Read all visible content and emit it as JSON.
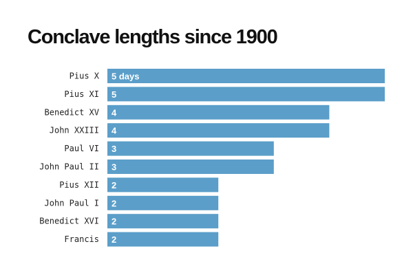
{
  "chart_data": {
    "type": "bar",
    "orientation": "horizontal",
    "title": "Conclave lengths since 1900",
    "categories": [
      "Pius X",
      "Pius XI",
      "Benedict XV",
      "John XXIII",
      "Paul VI",
      "John Paul II",
      "Pius XII",
      "John Paul I",
      "Benedict XVI",
      "Francis"
    ],
    "values": [
      5,
      5,
      4,
      4,
      3,
      3,
      2,
      2,
      2,
      2
    ],
    "data_labels": [
      "5 days",
      "5",
      "4",
      "4",
      "3",
      "3",
      "2",
      "2",
      "2",
      "2"
    ],
    "xlim": [
      0,
      5
    ],
    "grid": false,
    "colors": {
      "bar": "#5b9ec9",
      "data_label": "#ffffff",
      "category_label": "#222222",
      "title": "#111111"
    }
  }
}
